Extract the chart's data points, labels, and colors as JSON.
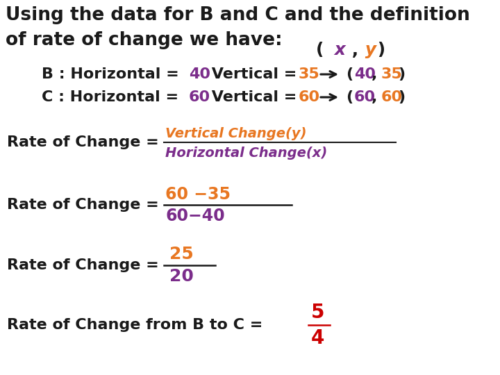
{
  "background_color": "#ffffff",
  "black_color": "#1a1a1a",
  "purple_color": "#7B2D8B",
  "orange_color": "#E87722",
  "red_color": "#CC0000",
  "fig_w": 720,
  "fig_h": 540,
  "title_line1": "Using the data for B and C and the definition",
  "title_line2": "of rate of change we have:",
  "title_fontsize": 19,
  "body_fontsize": 16,
  "frac1_num": "Vertical Change(y)",
  "frac1_den": "Horizontal Change(x)",
  "frac2_num": "60 −35",
  "frac2_den": "60−40",
  "frac3_num": "25",
  "frac3_den": "20",
  "frac4_num": "5",
  "frac4_den": "4"
}
